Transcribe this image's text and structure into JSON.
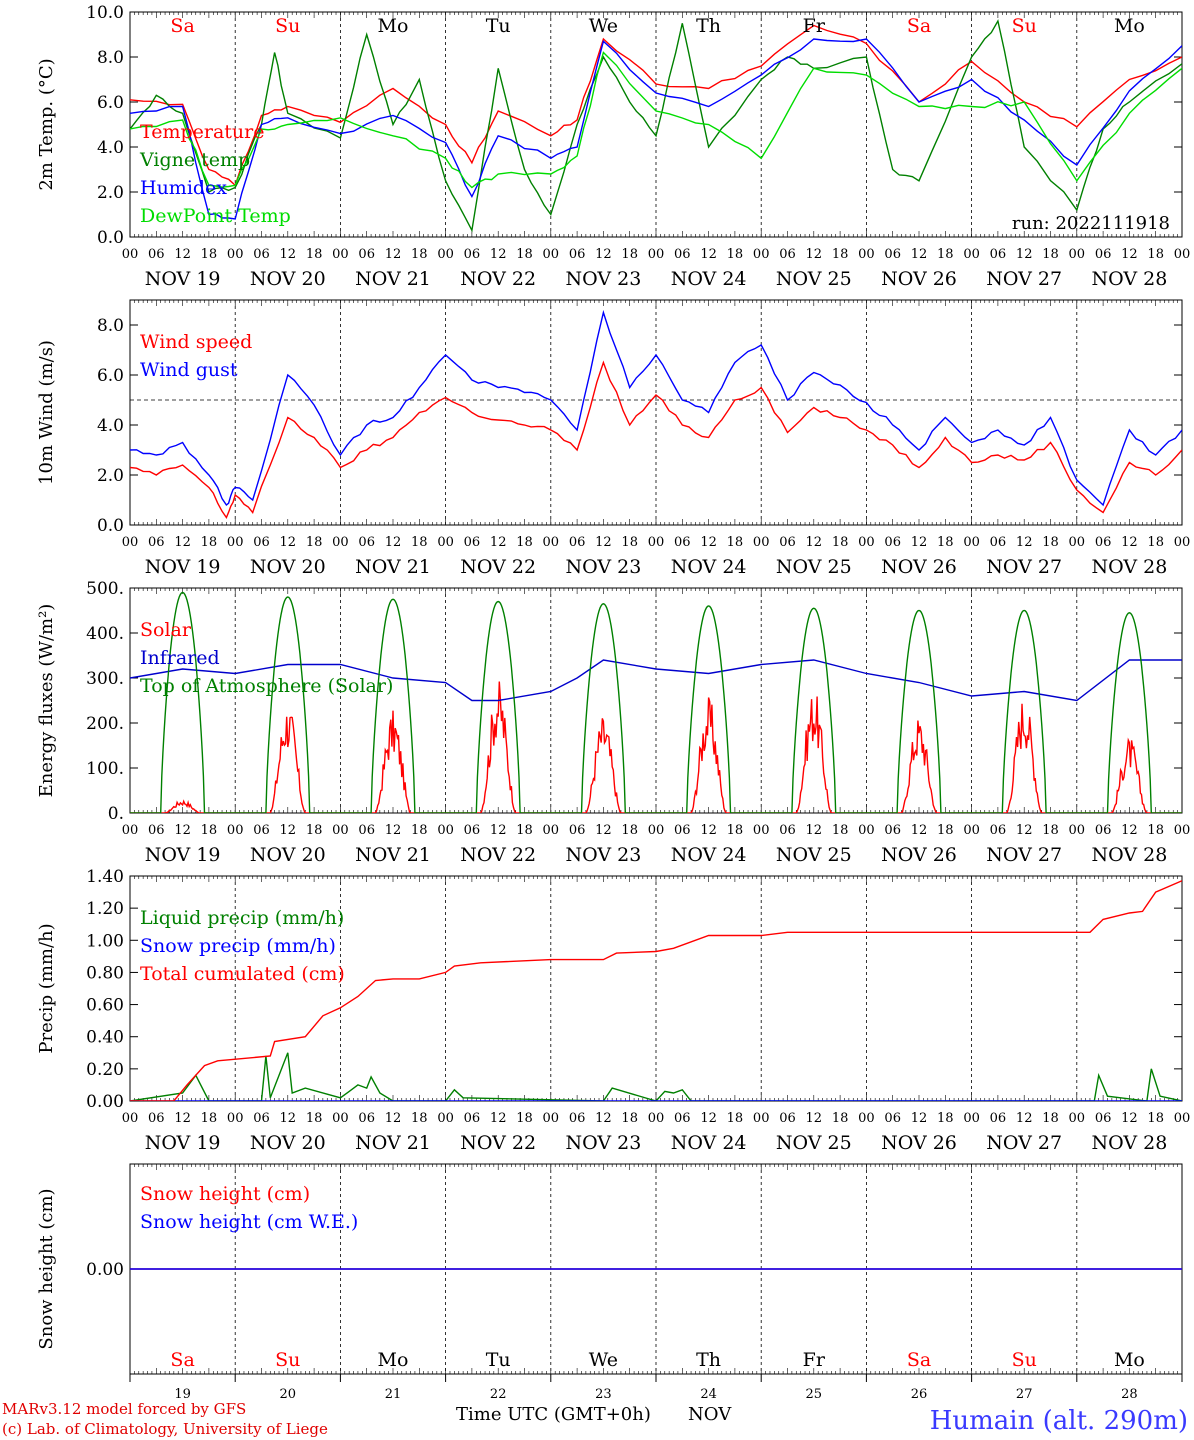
{
  "chart_data": [
    {
      "type": "line",
      "ylabel": "2m Temp. (°C)",
      "ylim": [
        0,
        10
      ],
      "yticks": [
        "0.0",
        "2.0",
        "4.0",
        "6.0",
        "8.0",
        "10.0"
      ],
      "annotation": "run: 2022111918",
      "series": [
        {
          "name": "Temperature",
          "color": "#ff0000",
          "x": [
            0,
            12,
            18,
            24,
            30,
            36,
            48,
            60,
            72,
            78,
            84,
            96,
            102,
            108,
            120,
            132,
            144,
            156,
            168,
            180,
            192,
            204,
            216,
            228,
            240
          ],
          "y": [
            6.1,
            5.9,
            3.0,
            2.3,
            5.4,
            5.8,
            5.1,
            6.6,
            5.0,
            3.3,
            5.6,
            4.5,
            5.2,
            8.8,
            6.8,
            6.6,
            7.6,
            9.4,
            8.6,
            6.0,
            7.8,
            6.0,
            4.9,
            7.0,
            8.0
          ]
        },
        {
          "name": "Vigne temp",
          "color": "#008000",
          "x": [
            0,
            6,
            12,
            18,
            24,
            30,
            33,
            36,
            48,
            54,
            60,
            66,
            72,
            78,
            84,
            90,
            96,
            102,
            108,
            114,
            120,
            126,
            132,
            144,
            150,
            156,
            168,
            174,
            180,
            192,
            198,
            204,
            216,
            222,
            228,
            240
          ],
          "y": [
            4.8,
            6.3,
            5.5,
            2.0,
            2.2,
            5.0,
            8.2,
            5.5,
            4.4,
            9.0,
            5.0,
            7.0,
            2.5,
            0.3,
            7.5,
            3.0,
            1.0,
            5.0,
            8.0,
            6.0,
            4.5,
            9.5,
            4.0,
            7.0,
            8.0,
            7.5,
            8.0,
            3.0,
            2.5,
            8.0,
            9.6,
            4.0,
            1.2,
            4.8,
            6.0,
            7.7
          ]
        },
        {
          "name": "Humidex",
          "color": "#0000ff",
          "x": [
            0,
            12,
            18,
            24,
            30,
            36,
            48,
            60,
            72,
            78,
            84,
            96,
            102,
            108,
            120,
            132,
            144,
            156,
            168,
            180,
            192,
            204,
            216,
            228,
            240
          ],
          "y": [
            5.5,
            5.8,
            1.0,
            0.8,
            5.0,
            5.3,
            4.6,
            5.4,
            4.2,
            1.8,
            4.5,
            3.5,
            4.0,
            8.7,
            6.4,
            5.8,
            7.2,
            8.8,
            8.8,
            6.0,
            7.0,
            5.2,
            3.2,
            6.5,
            8.5
          ]
        },
        {
          "name": "DewPoint Temp",
          "color": "#00dd00",
          "x": [
            0,
            12,
            18,
            24,
            30,
            36,
            48,
            60,
            72,
            78,
            84,
            96,
            102,
            108,
            120,
            132,
            144,
            156,
            168,
            180,
            192,
            204,
            216,
            228,
            240
          ],
          "y": [
            4.8,
            5.2,
            2.3,
            2.3,
            4.8,
            5.0,
            5.3,
            4.5,
            3.5,
            2.2,
            2.8,
            2.8,
            3.6,
            8.2,
            5.6,
            5.0,
            3.5,
            7.5,
            7.2,
            5.8,
            5.8,
            6.0,
            2.5,
            5.5,
            7.5
          ]
        }
      ]
    },
    {
      "type": "line",
      "ylabel": "10m Wind (m/s)",
      "ylim": [
        0,
        9
      ],
      "yticks": [
        "0.0",
        "2.0",
        "4.0",
        "6.0",
        "8.0"
      ],
      "refline": 5,
      "series": [
        {
          "name": "Wind speed",
          "color": "#ff0000",
          "x": [
            0,
            6,
            12,
            18,
            22,
            24,
            28,
            36,
            42,
            48,
            54,
            60,
            66,
            72,
            78,
            84,
            90,
            96,
            102,
            108,
            114,
            120,
            126,
            132,
            138,
            144,
            150,
            156,
            162,
            168,
            174,
            180,
            186,
            192,
            198,
            204,
            210,
            216,
            222,
            228,
            234,
            240
          ],
          "y": [
            2.3,
            2.0,
            2.4,
            1.5,
            0.3,
            1.2,
            0.5,
            4.3,
            3.5,
            2.3,
            3.0,
            3.5,
            4.5,
            5.1,
            4.5,
            4.2,
            4.0,
            3.8,
            3.0,
            6.5,
            4.0,
            5.2,
            4.0,
            3.5,
            5.0,
            5.5,
            3.7,
            4.7,
            4.3,
            3.8,
            3.2,
            2.3,
            3.5,
            2.5,
            2.8,
            2.6,
            3.3,
            1.4,
            0.5,
            2.5,
            2.0,
            3.0
          ]
        },
        {
          "name": "Wind gust",
          "color": "#0000ff",
          "x": [
            0,
            6,
            12,
            18,
            22,
            24,
            28,
            36,
            42,
            48,
            54,
            60,
            66,
            72,
            78,
            84,
            90,
            96,
            102,
            108,
            114,
            120,
            126,
            132,
            138,
            144,
            150,
            156,
            162,
            168,
            174,
            180,
            186,
            192,
            198,
            204,
            210,
            216,
            222,
            228,
            234,
            240
          ],
          "y": [
            3.0,
            2.8,
            3.3,
            2.0,
            0.8,
            1.5,
            1.0,
            6.0,
            4.8,
            2.8,
            4.0,
            4.3,
            5.5,
            6.8,
            5.8,
            5.5,
            5.3,
            5.0,
            3.8,
            8.5,
            5.5,
            6.8,
            5.0,
            4.5,
            6.5,
            7.2,
            5.0,
            6.1,
            5.6,
            4.9,
            4.0,
            3.0,
            4.3,
            3.3,
            3.8,
            3.2,
            4.3,
            1.8,
            0.8,
            3.8,
            2.8,
            3.8
          ]
        }
      ]
    },
    {
      "type": "line",
      "ylabel": "Energy fluxes (W/m²)",
      "ylim": [
        0,
        500
      ],
      "yticks": [
        "0.",
        "100.",
        "200.",
        "300.",
        "400.",
        "500."
      ],
      "series": [
        {
          "name": "Solar",
          "color": "#ff0000",
          "peaks": [
            30,
            250,
            230,
            300,
            220,
            260,
            280,
            220,
            270,
            170
          ]
        },
        {
          "name": "Infrared",
          "color": "#0000cc",
          "x": [
            0,
            12,
            24,
            36,
            48,
            60,
            72,
            78,
            84,
            96,
            102,
            108,
            120,
            132,
            144,
            156,
            168,
            180,
            192,
            204,
            216,
            228,
            240
          ],
          "y": [
            300,
            320,
            310,
            330,
            330,
            300,
            290,
            250,
            250,
            270,
            300,
            340,
            320,
            310,
            330,
            340,
            310,
            290,
            260,
            270,
            250,
            340,
            340
          ]
        },
        {
          "name": "Top of Atmosphere (Solar)",
          "color": "#008000",
          "peaks": [
            490,
            480,
            475,
            470,
            465,
            460,
            455,
            450,
            450,
            445
          ]
        }
      ]
    },
    {
      "type": "line",
      "ylabel": "Precip (mm/h)",
      "ylim": [
        0,
        1.4
      ],
      "yticks": [
        "0.00",
        "0.20",
        "0.40",
        "0.60",
        "0.80",
        "1.00",
        "1.20",
        "1.40"
      ],
      "series": [
        {
          "name": "Liquid precip (mm/h)",
          "color": "#008000",
          "x": [
            0,
            12,
            15,
            18,
            30,
            31,
            32,
            36,
            37,
            40,
            48,
            50,
            52,
            54,
            55,
            57,
            60,
            72,
            74,
            76,
            108,
            110,
            120,
            122,
            124,
            126,
            128,
            220,
            221,
            223,
            232,
            233,
            235,
            240
          ],
          "y": [
            0,
            0.05,
            0.16,
            0.0,
            0.0,
            0.28,
            0.02,
            0.3,
            0.05,
            0.08,
            0.02,
            0.06,
            0.1,
            0.08,
            0.15,
            0.05,
            0.0,
            0.0,
            0.07,
            0.02,
            0.0,
            0.08,
            0.0,
            0.06,
            0.05,
            0.07,
            0.0,
            0.0,
            0.16,
            0.03,
            0.0,
            0.2,
            0.03,
            0.0
          ]
        },
        {
          "name": "Snow precip (mm/h)",
          "color": "#0000ff",
          "x": [
            0,
            240
          ],
          "y": [
            0,
            0
          ]
        },
        {
          "name": "Total cumulated (cm)",
          "color": "#ff0000",
          "x": [
            0,
            10,
            13,
            17,
            20,
            32,
            33,
            40,
            44,
            48,
            52,
            56,
            60,
            66,
            72,
            74,
            80,
            96,
            108,
            111,
            120,
            124,
            132,
            144,
            150,
            210,
            219,
            222,
            228,
            231,
            234,
            240
          ],
          "y": [
            0,
            0.0,
            0.1,
            0.22,
            0.25,
            0.28,
            0.37,
            0.4,
            0.53,
            0.58,
            0.65,
            0.75,
            0.76,
            0.76,
            0.8,
            0.84,
            0.86,
            0.88,
            0.88,
            0.92,
            0.93,
            0.95,
            1.03,
            1.03,
            1.05,
            1.05,
            1.05,
            1.13,
            1.17,
            1.18,
            1.3,
            1.37
          ]
        }
      ]
    },
    {
      "type": "line",
      "ylabel": "Snow height (cm)",
      "ylim": [
        -1,
        1
      ],
      "yticks": [
        "0.00"
      ],
      "series": [
        {
          "name": "Snow height (cm)",
          "color": "#ff0000",
          "x": [
            0,
            240
          ],
          "y": [
            0,
            0
          ]
        },
        {
          "name": "Snow height (cm W.E.)",
          "color": "#0000ff",
          "x": [
            0,
            240
          ],
          "y": [
            0,
            0
          ]
        }
      ]
    }
  ],
  "time_axis": {
    "hour_labels": [
      "00",
      "06",
      "12",
      "18"
    ],
    "end_label": "00",
    "date_labels": [
      "NOV 19",
      "NOV 20",
      "NOV 21",
      "NOV 22",
      "NOV 23",
      "NOV 24",
      "NOV 25",
      "NOV 26",
      "NOV 27",
      "NOV 28"
    ],
    "weekdays": [
      {
        "label": "Sa",
        "color": "#ff0000"
      },
      {
        "label": "Su",
        "color": "#ff0000"
      },
      {
        "label": "Mo",
        "color": "#000000"
      },
      {
        "label": "Tu",
        "color": "#000000"
      },
      {
        "label": "We",
        "color": "#000000"
      },
      {
        "label": "Th",
        "color": "#000000"
      },
      {
        "label": "Fr",
        "color": "#000000"
      },
      {
        "label": "Sa",
        "color": "#ff0000"
      },
      {
        "label": "Su",
        "color": "#ff0000"
      },
      {
        "label": "Mo",
        "color": "#000000"
      }
    ],
    "day_numbers": [
      "19",
      "20",
      "21",
      "22",
      "23",
      "24",
      "25",
      "26",
      "27",
      "28"
    ]
  },
  "footer": {
    "model_line": "MARv3.12 model forced by GFS",
    "copyright_line": "(c) Lab. of Climatology, University of Liege",
    "axis_title": "Time UTC (GMT+0h)",
    "axis_month": "NOV",
    "station": "Humain (alt. 290m)"
  }
}
